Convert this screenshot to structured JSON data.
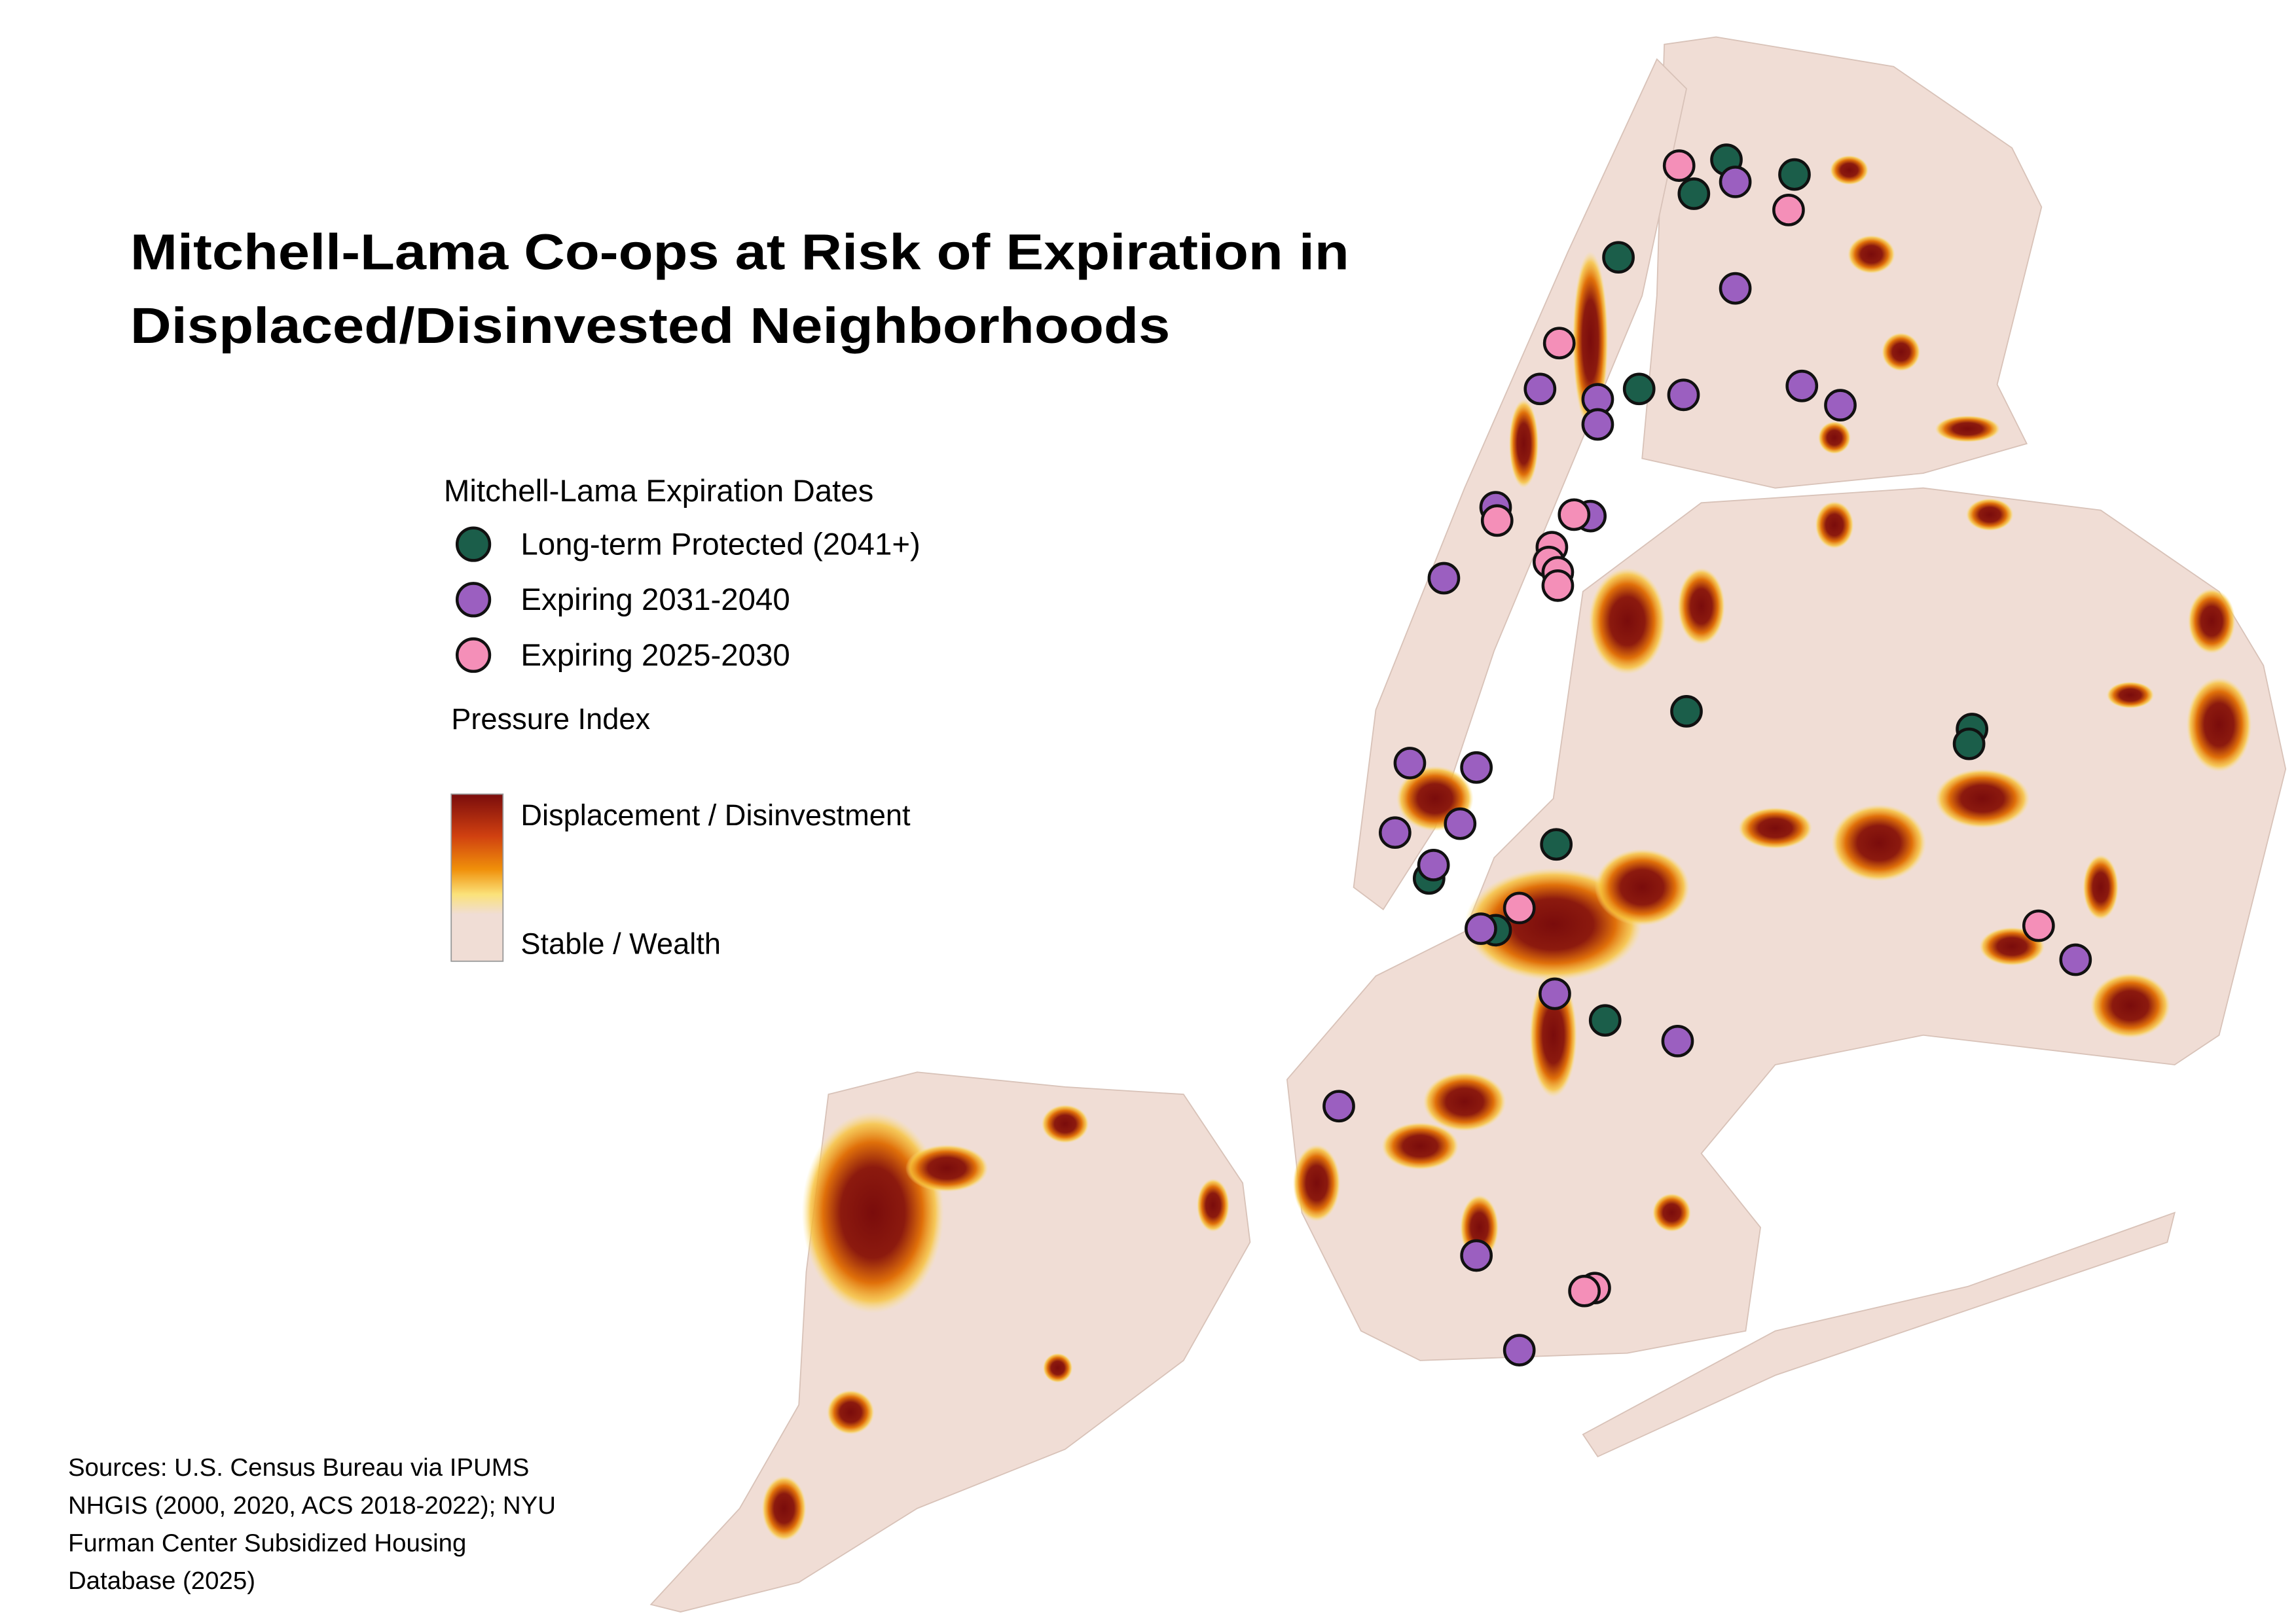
{
  "title": [
    "Mitchell-Lama Co-ops at Risk of Expiration in",
    "Displaced/Disinvested Neighborhoods"
  ],
  "legend": {
    "title": "Mitchell-Lama Expiration Dates",
    "items": [
      {
        "label": "Long-term Protected (2041+)",
        "color": "#1b5e4a"
      },
      {
        "label": "Expiring 2031-2040",
        "color": "#9b5fc0"
      },
      {
        "label": "Expiring 2025-2030",
        "color": "#f48fb8"
      }
    ]
  },
  "pressure_index": {
    "title": "Pressure Index",
    "high": "Displacement / Disinvestment",
    "low": "Stable / Wealth"
  },
  "sources": [
    "Sources: U.S. Census Bureau via IPUMS",
    "NHGIS (2000, 2020, ACS 2018-2022); NYU",
    "Furman Center Subsidized Housing",
    "Database (2025)"
  ]
}
